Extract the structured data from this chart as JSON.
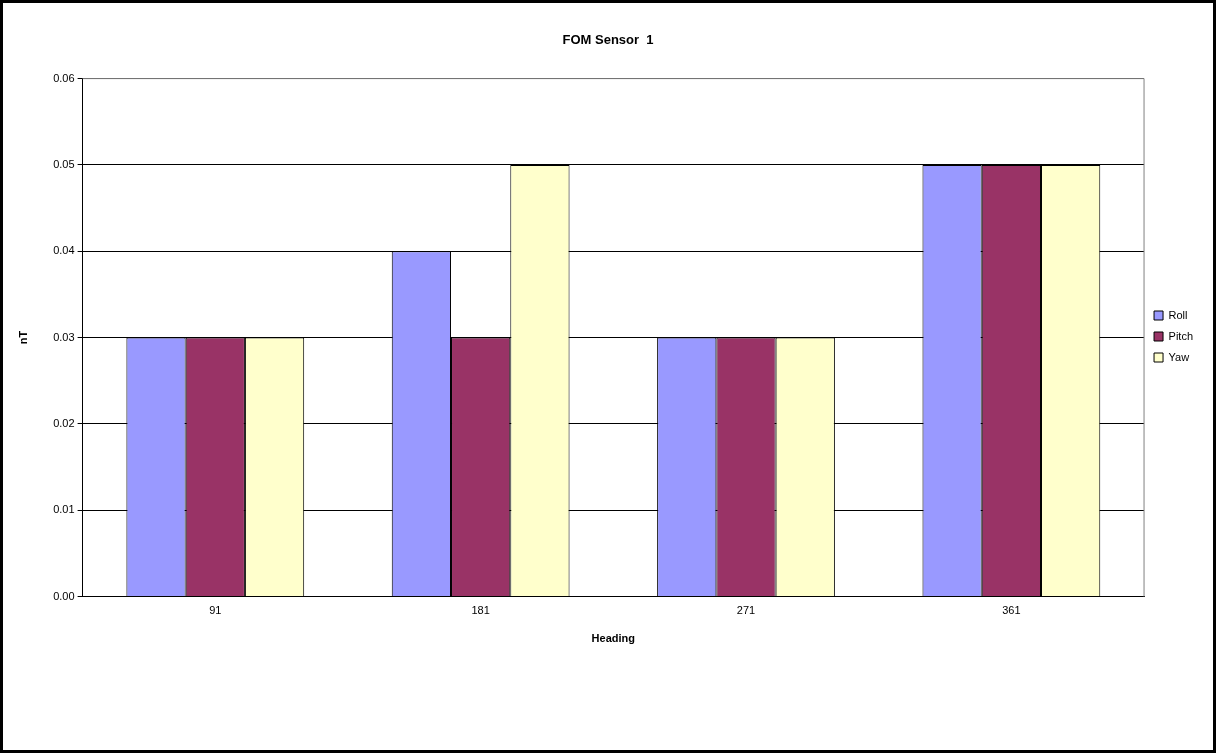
{
  "chart_data": {
    "type": "bar",
    "title": "FOM Sensor  1",
    "xlabel": "Heading",
    "ylabel": "nT",
    "categories": [
      "91",
      "181",
      "271",
      "361"
    ],
    "series": [
      {
        "name": "Roll",
        "color": "#9999ff",
        "values": [
          0.03,
          0.04,
          0.03,
          0.05
        ]
      },
      {
        "name": "Pitch",
        "color": "#993366",
        "values": [
          0.03,
          0.03,
          0.03,
          0.05
        ]
      },
      {
        "name": "Yaw",
        "color": "#ffffcc",
        "values": [
          0.03,
          0.05,
          0.03,
          0.05
        ]
      }
    ],
    "ylim": [
      0,
      0.06
    ],
    "yticks": [
      {
        "value": 0,
        "label": "0.00"
      },
      0.01,
      0.02,
      0.03,
      0.04,
      0.05,
      0.06
    ],
    "grid": "y",
    "legend": "right"
  }
}
